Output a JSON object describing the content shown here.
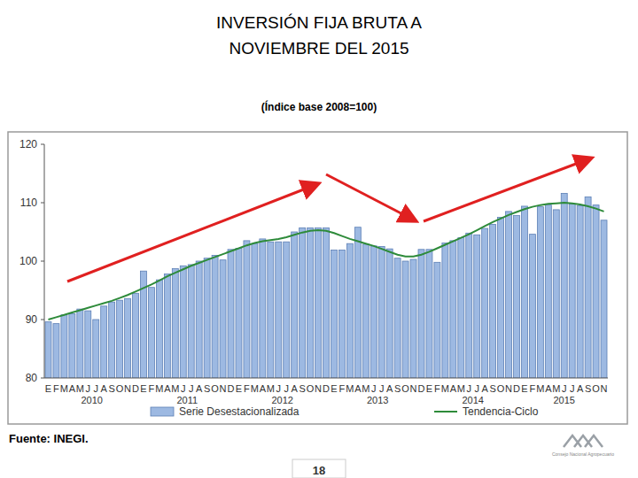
{
  "page": {
    "title_lines": [
      "INVERSIÓN FIJA BRUTA A",
      "NOVIEMBRE DEL 2015"
    ],
    "source": "Fuente: INEGI.",
    "page_number": "18",
    "logo_text": "Consejo Nacional Agropecuario"
  },
  "chart_data": {
    "type": "bar",
    "title": "INVERSIÓN FIJA BRUTA A NOVIEMBRE DEL 2015",
    "subtitle": "(Índice base 2008=100)",
    "categories": [
      "E",
      "F",
      "M",
      "A",
      "M",
      "J",
      "J",
      "A",
      "S",
      "O",
      "N",
      "D",
      "E",
      "F",
      "M",
      "A",
      "M",
      "J",
      "J",
      "A",
      "S",
      "O",
      "N",
      "D",
      "E",
      "F",
      "M",
      "A",
      "M",
      "J",
      "J",
      "A",
      "S",
      "O",
      "N",
      "D",
      "E",
      "F",
      "M",
      "A",
      "M",
      "J",
      "J",
      "A",
      "S",
      "O",
      "N",
      "D",
      "E",
      "F",
      "M",
      "A",
      "M",
      "J",
      "J",
      "A",
      "S",
      "O",
      "N",
      "D",
      "E",
      "F",
      "M",
      "A",
      "M",
      "J",
      "J",
      "A",
      "S",
      "O",
      "N"
    ],
    "year_labels": [
      "2010",
      "2011",
      "2012",
      "2013",
      "2014",
      "2015"
    ],
    "series": [
      {
        "name": "Serie Desestacionalizada",
        "type": "bar",
        "color": "#9db9e2",
        "values": [
          89.6,
          89.3,
          90.8,
          91.0,
          91.8,
          91.5,
          90.0,
          92.3,
          93.0,
          93.3,
          93.6,
          94.5,
          98.3,
          95.5,
          96.8,
          97.8,
          98.7,
          99.2,
          99.4,
          100.0,
          100.5,
          101.0,
          100.2,
          102.0,
          102.2,
          103.5,
          103.0,
          103.8,
          103.3,
          103.3,
          103.3,
          105.0,
          105.7,
          105.7,
          105.7,
          105.7,
          101.9,
          101.9,
          103.0,
          105.8,
          102.9,
          102.6,
          102.5,
          102.1,
          100.5,
          100.0,
          100.3,
          102.0,
          102.0,
          99.8,
          103.1,
          103.5,
          104.0,
          104.8,
          104.5,
          105.6,
          106.3,
          107.5,
          108.5,
          107.8,
          109.4,
          104.6,
          109.3,
          109.6,
          108.8,
          111.6,
          109.8,
          109.5,
          111.0,
          109.6,
          107.0
        ]
      },
      {
        "name": "Tendencia-Ciclo",
        "type": "line",
        "color": "#2e8b3a",
        "values": [
          90.0,
          90.4,
          90.8,
          91.2,
          91.6,
          92.0,
          92.4,
          92.8,
          93.2,
          93.7,
          94.2,
          94.8,
          95.4,
          96.0,
          96.7,
          97.4,
          98.0,
          98.6,
          99.2,
          99.7,
          100.2,
          100.7,
          101.2,
          101.7,
          102.2,
          102.7,
          103.1,
          103.4,
          103.6,
          103.8,
          104.1,
          104.5,
          104.9,
          105.2,
          105.3,
          105.2,
          104.8,
          104.3,
          103.8,
          103.4,
          103.0,
          102.6,
          102.1,
          101.6,
          101.1,
          100.8,
          100.8,
          101.1,
          101.6,
          102.2,
          102.8,
          103.4,
          104.0,
          104.6,
          105.3,
          106.0,
          106.7,
          107.3,
          107.9,
          108.4,
          108.9,
          109.3,
          109.6,
          109.8,
          109.9,
          110.0,
          109.9,
          109.7,
          109.4,
          109.0,
          108.5
        ]
      }
    ],
    "ylim": [
      80,
      120
    ],
    "yticks": [
      80,
      90,
      100,
      110,
      120
    ],
    "grid": false,
    "legend": "bottom"
  }
}
